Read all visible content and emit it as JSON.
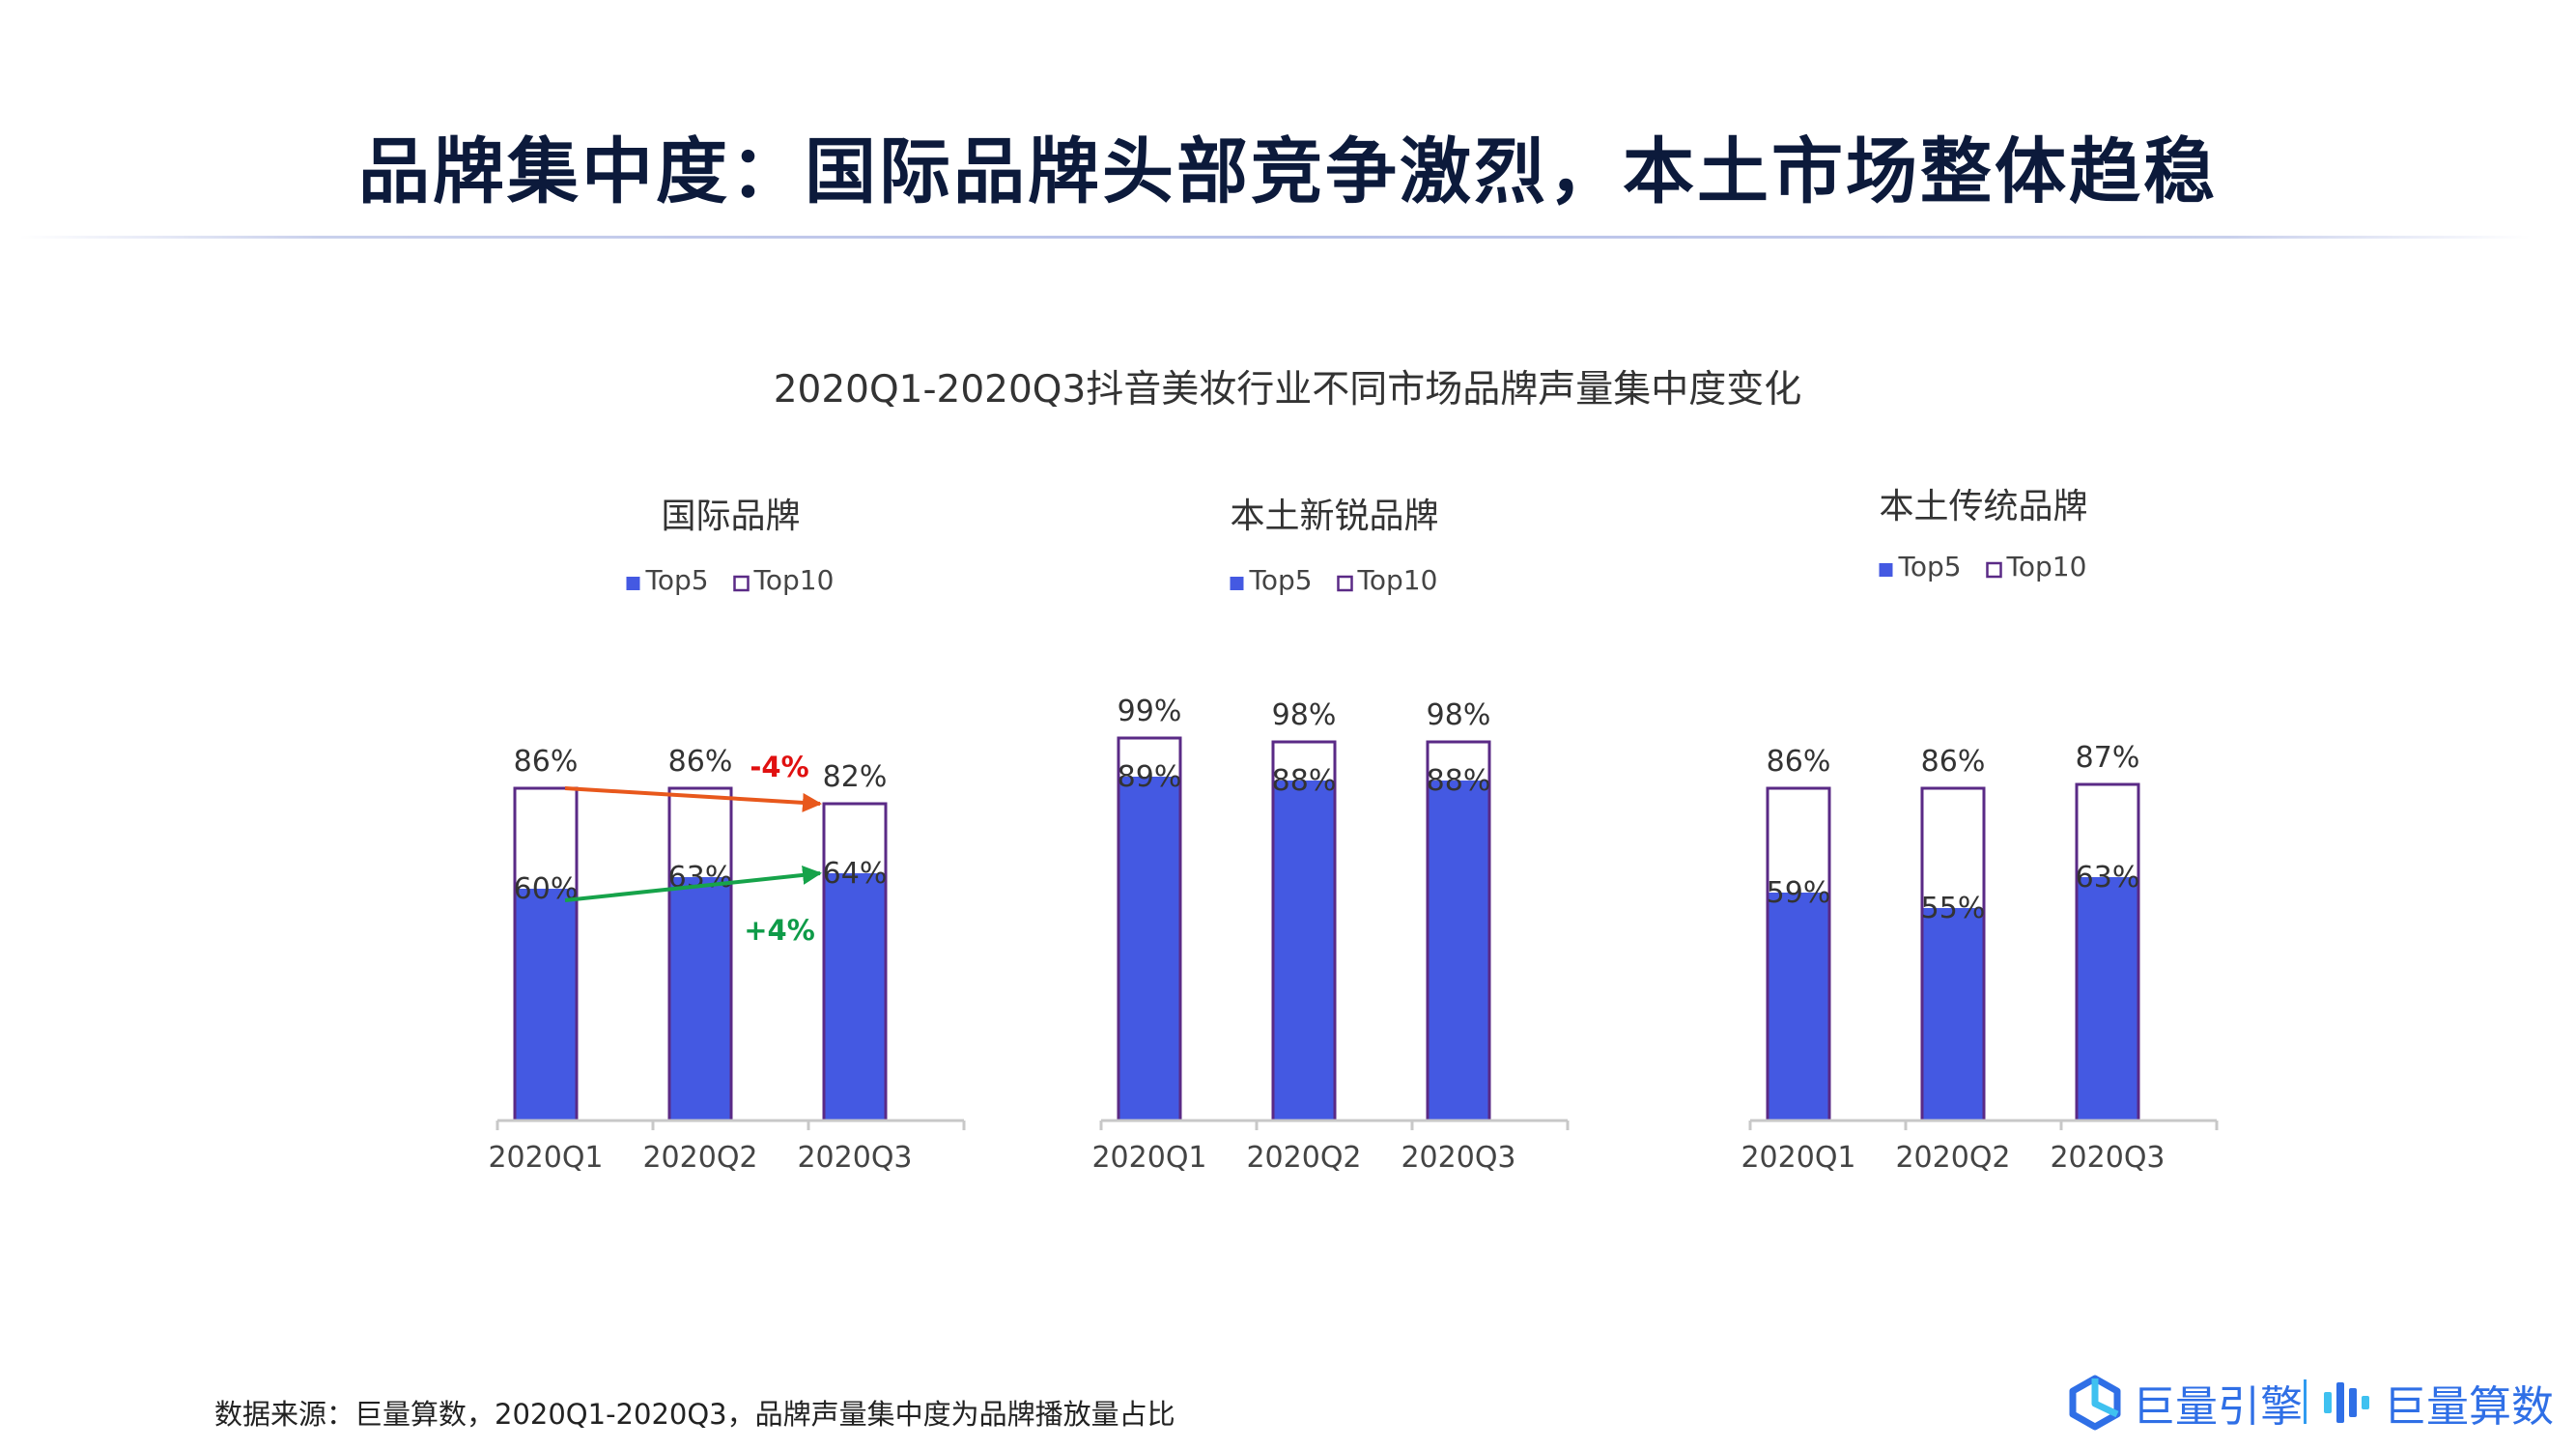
{
  "page": {
    "title": "品牌集中度：国际品牌头部竞争激烈，本土市场整体趋稳",
    "footnote": "数据来源：巨量算数，2020Q1-2020Q3，品牌声量集中度为品牌播放量占比"
  },
  "logos": {
    "left": {
      "text": "巨量引擎",
      "icon": "ocean-engine-logo-icon",
      "color": "#2f6fe6"
    },
    "right": {
      "text": "巨量算数",
      "icon": "suanshu-logo-icon",
      "color": "#2f6fe6"
    }
  },
  "chart_data": {
    "title": "2020Q1-2020Q3抖音美妆行业不同市场品牌声量集中度变化",
    "type": "bar",
    "colors": {
      "top5": "#4459e2",
      "top10_border": "#5a2a86",
      "axis": "#c8c8c8",
      "increase": "#16a34a",
      "decrease": "#e8581c",
      "increase_label": "#0e9b48",
      "decrease_label": "#e01010"
    },
    "charts": [
      {
        "subtitle": "国际品牌",
        "categories": [
          "2020Q1",
          "2020Q2",
          "2020Q3"
        ],
        "series": [
          {
            "name": "Top5",
            "values": [
              60,
              63,
              64
            ],
            "labels": [
              "60%",
              "63%",
              "64%"
            ]
          },
          {
            "name": "Top10",
            "values": [
              86,
              86,
              82
            ],
            "labels": [
              "86%",
              "86%",
              "82%"
            ]
          }
        ],
        "annotations": [
          {
            "series": "Top10",
            "from": "2020Q1",
            "to": "2020Q3",
            "text": "-4%",
            "direction": "down"
          },
          {
            "series": "Top5",
            "from": "2020Q1",
            "to": "2020Q3",
            "text": "+4%",
            "direction": "up"
          }
        ]
      },
      {
        "subtitle": "本土新锐品牌",
        "categories": [
          "2020Q1",
          "2020Q2",
          "2020Q3"
        ],
        "series": [
          {
            "name": "Top5",
            "values": [
              89,
              88,
              88
            ],
            "labels": [
              "89%",
              "88%",
              "88%"
            ]
          },
          {
            "name": "Top10",
            "values": [
              99,
              98,
              98
            ],
            "labels": [
              "99%",
              "98%",
              "98%"
            ]
          }
        ],
        "annotations": []
      },
      {
        "subtitle": "本土传统品牌",
        "categories": [
          "2020Q1",
          "2020Q2",
          "2020Q3"
        ],
        "series": [
          {
            "name": "Top5",
            "values": [
              59,
              55,
              63
            ],
            "labels": [
              "59%",
              "55%",
              "63%"
            ]
          },
          {
            "name": "Top10",
            "values": [
              86,
              86,
              87
            ],
            "labels": [
              "86%",
              "86%",
              "87%"
            ]
          }
        ],
        "annotations": []
      }
    ]
  }
}
